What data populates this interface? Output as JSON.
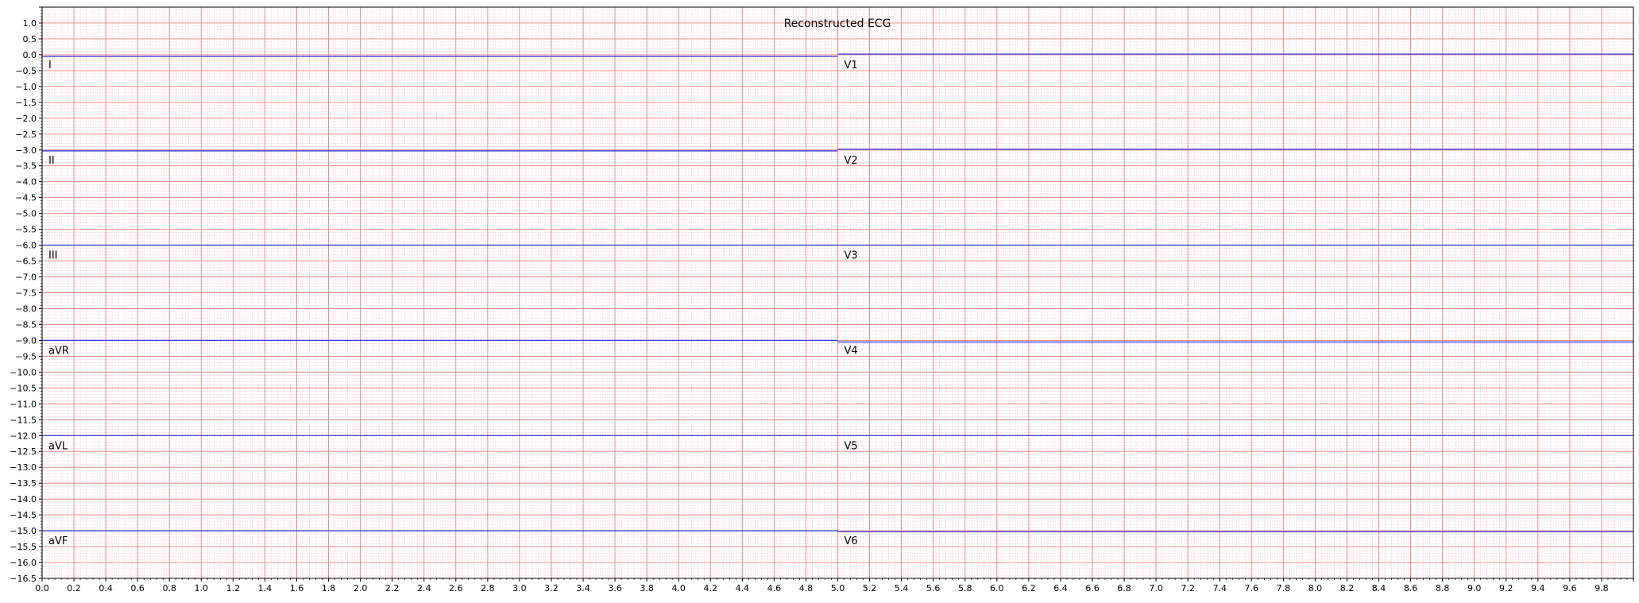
{
  "chart_data": {
    "type": "line",
    "title": "Reconstructed ECG",
    "xlabel": "",
    "ylabel": "",
    "xlim": [
      0.0,
      10.0
    ],
    "ylim": [
      -16.5,
      1.5
    ],
    "grid": true,
    "x_major_step": 0.2,
    "x_minor_step": 0.04,
    "y_major_step": 0.5,
    "y_minor_step": 0.1,
    "colors": {
      "major_grid": "#f08080",
      "minor_grid": "#f7b4b4",
      "trace": "#3a3adf"
    },
    "series": [
      {
        "lead": "I",
        "baseline": 0,
        "x": [
          0,
          5
        ],
        "y": [
          -0.05,
          -0.05
        ]
      },
      {
        "lead": "II",
        "baseline": -3,
        "x": [
          0,
          5
        ],
        "y": [
          -3.03,
          -3.03
        ]
      },
      {
        "lead": "III",
        "baseline": -6,
        "x": [
          0,
          5
        ],
        "y": [
          -6.0,
          -6.0
        ]
      },
      {
        "lead": "aVR",
        "baseline": -9,
        "x": [
          0,
          5
        ],
        "y": [
          -9.0,
          -9.0
        ]
      },
      {
        "lead": "aVL",
        "baseline": -12,
        "x": [
          0,
          5
        ],
        "y": [
          -12.0,
          -12.0
        ]
      },
      {
        "lead": "aVF",
        "baseline": -15,
        "x": [
          0,
          5
        ],
        "y": [
          -15.0,
          -15.0
        ]
      },
      {
        "lead": "V1",
        "baseline": 0,
        "x": [
          5,
          10
        ],
        "y": [
          0.02,
          0.02
        ]
      },
      {
        "lead": "V2",
        "baseline": -3,
        "x": [
          5,
          10
        ],
        "y": [
          -2.98,
          -2.98
        ]
      },
      {
        "lead": "V3",
        "baseline": -6,
        "x": [
          5,
          10
        ],
        "y": [
          -6.0,
          -6.0
        ]
      },
      {
        "lead": "V4",
        "baseline": -9,
        "x": [
          5,
          10
        ],
        "y": [
          -9.05,
          -9.05
        ]
      },
      {
        "lead": "V5",
        "baseline": -12,
        "x": [
          5,
          10
        ],
        "y": [
          -12.0,
          -12.0
        ]
      },
      {
        "lead": "V6",
        "baseline": -15,
        "x": [
          5,
          10
        ],
        "y": [
          -15.03,
          -15.03
        ]
      }
    ]
  }
}
